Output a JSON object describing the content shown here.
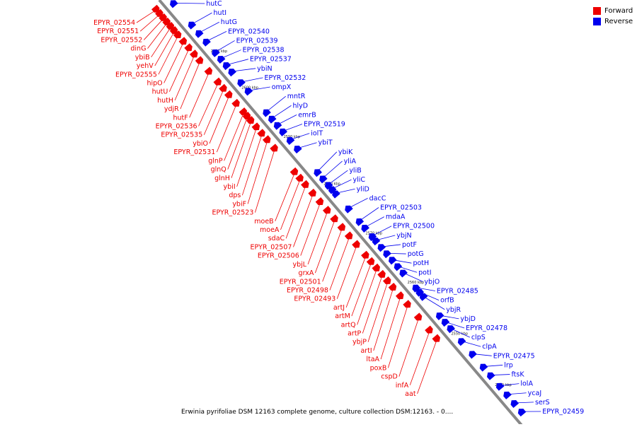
{
  "caption": "Erwinia pyrifoliae DSM 12163 complete genome, culture collection DSM:12163. - 0....",
  "legend": [
    {
      "label": "Forward",
      "color": "#ee0000"
    },
    {
      "label": "Reverse",
      "color": "#0000ee"
    }
  ],
  "colors": {
    "forward": "#ee0000",
    "reverse": "#0000ee",
    "backbone": "#888888"
  },
  "ruler": [
    {
      "label": "2610 kbp",
      "t": 0.13
    },
    {
      "label": "2600 kbp",
      "t": 0.215
    },
    {
      "label": "2590 kbp",
      "t": 0.33
    },
    {
      "label": "2580 kbp",
      "t": 0.44
    },
    {
      "label": "2570 kbp",
      "t": 0.555
    },
    {
      "label": "2560 kbp",
      "t": 0.67
    },
    {
      "label": "2550 kbp",
      "t": 0.79
    },
    {
      "label": "2540 kbp",
      "t": 0.91
    }
  ],
  "reverse_genes": [
    {
      "label": "hutC",
      "t": 0.02
    },
    {
      "label": "hutI",
      "t": 0.07
    },
    {
      "label": "hutG",
      "t": 0.09
    },
    {
      "label": "EPYR_02540",
      "t": 0.11
    },
    {
      "label": "EPYR_02539",
      "t": 0.135
    },
    {
      "label": "EPYR_02538",
      "t": 0.15
    },
    {
      "label": "EPYR_02537",
      "t": 0.165
    },
    {
      "label": "ybiN",
      "t": 0.18
    },
    {
      "label": "EPYR_02532",
      "t": 0.205
    },
    {
      "label": "ompX",
      "t": 0.225
    },
    {
      "label": "mntR",
      "t": 0.275
    },
    {
      "label": "hlyD",
      "t": 0.29
    },
    {
      "label": "emrB",
      "t": 0.305
    },
    {
      "label": "EPYR_02519",
      "t": 0.32
    },
    {
      "label": "iolT",
      "t": 0.34
    },
    {
      "label": "ybiT",
      "t": 0.36
    },
    {
      "label": "ybiK",
      "t": 0.415
    },
    {
      "label": "yliA",
      "t": 0.43
    },
    {
      "label": "yliB",
      "t": 0.445
    },
    {
      "label": "yliC",
      "t": 0.455
    },
    {
      "label": "yliD",
      "t": 0.465
    },
    {
      "label": "dacC",
      "t": 0.5
    },
    {
      "label": "EPYR_02503",
      "t": 0.53
    },
    {
      "label": "mdaA",
      "t": 0.545
    },
    {
      "label": "EPYR_02500",
      "t": 0.565
    },
    {
      "label": "ybjN",
      "t": 0.575
    },
    {
      "label": "potF",
      "t": 0.59
    },
    {
      "label": "potG",
      "t": 0.605
    },
    {
      "label": "potH",
      "t": 0.62
    },
    {
      "label": "potI",
      "t": 0.635
    },
    {
      "label": "ybjO",
      "t": 0.65
    },
    {
      "label": "EPYR_02485",
      "t": 0.685
    },
    {
      "label": "orfB",
      "t": 0.695
    },
    {
      "label": "ybjR",
      "t": 0.705
    },
    {
      "label": "ybjD",
      "t": 0.75
    },
    {
      "label": "EPYR_02478",
      "t": 0.765
    },
    {
      "label": "clpS",
      "t": 0.78
    },
    {
      "label": "clpA",
      "t": 0.81
    },
    {
      "label": "EPYR_02475",
      "t": 0.84
    },
    {
      "label": "lrp",
      "t": 0.87
    },
    {
      "label": "ftsK",
      "t": 0.89
    },
    {
      "label": "lolA",
      "t": 0.915
    },
    {
      "label": "ycaJ",
      "t": 0.935
    },
    {
      "label": "serS",
      "t": 0.955
    },
    {
      "label": "EPYR_02459",
      "t": 0.975
    }
  ],
  "forward_genes": [
    {
      "label": "EPYR_02554",
      "t": 0.01
    },
    {
      "label": "EPYR_02551",
      "t": 0.02
    },
    {
      "label": "EPYR_02552",
      "t": 0.03
    },
    {
      "label": "dinG",
      "t": 0.04
    },
    {
      "label": "ybiB",
      "t": 0.05
    },
    {
      "label": "yehV",
      "t": 0.06
    },
    {
      "label": "EPYR_02555",
      "t": 0.07
    },
    {
      "label": "hipO",
      "t": 0.085
    },
    {
      "label": "hutU",
      "t": 0.1
    },
    {
      "label": "hutH",
      "t": 0.115
    },
    {
      "label": "ydjR",
      "t": 0.13
    },
    {
      "label": "hutF",
      "t": 0.155
    },
    {
      "label": "EPYR_02536",
      "t": 0.18
    },
    {
      "label": "EPYR_02535",
      "t": 0.195
    },
    {
      "label": "ybiO",
      "t": 0.21
    },
    {
      "label": "EPYR_02531",
      "t": 0.23
    },
    {
      "label": "glnP",
      "t": 0.25
    },
    {
      "label": "glnQ",
      "t": 0.26
    },
    {
      "label": "glnH",
      "t": 0.27
    },
    {
      "label": "ybiI",
      "t": 0.285
    },
    {
      "label": "dps",
      "t": 0.3
    },
    {
      "label": "ybiF",
      "t": 0.315
    },
    {
      "label": "EPYR_02523",
      "t": 0.335
    },
    {
      "label": "moeB",
      "t": 0.39
    },
    {
      "label": "moeA",
      "t": 0.405
    },
    {
      "label": "sdaC",
      "t": 0.42
    },
    {
      "label": "EPYR_02507",
      "t": 0.44
    },
    {
      "label": "EPYR_02506",
      "t": 0.46
    },
    {
      "label": "ybjL",
      "t": 0.48
    },
    {
      "label": "grxA",
      "t": 0.5
    },
    {
      "label": "EPYR_02501",
      "t": 0.52
    },
    {
      "label": "EPYR_02498",
      "t": 0.54
    },
    {
      "label": "EPYR_02493",
      "t": 0.56
    },
    {
      "label": "artJ",
      "t": 0.585
    },
    {
      "label": "artM",
      "t": 0.6
    },
    {
      "label": "artQ",
      "t": 0.615
    },
    {
      "label": "artP",
      "t": 0.63
    },
    {
      "label": "ybjP",
      "t": 0.645
    },
    {
      "label": "artI",
      "t": 0.66
    },
    {
      "label": "ltaA",
      "t": 0.68
    },
    {
      "label": "poxB",
      "t": 0.7
    },
    {
      "label": "cspD",
      "t": 0.73
    },
    {
      "label": "infA",
      "t": 0.76
    },
    {
      "label": "aat",
      "t": 0.78
    }
  ]
}
